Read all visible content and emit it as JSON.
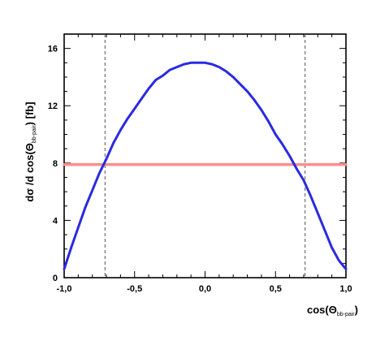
{
  "chart_data": {
    "type": "line",
    "title": "",
    "xlabel": {
      "prefix": "cos(Θ",
      "sub": "bb-pair",
      "suffix": ")"
    },
    "ylabel": {
      "prefix": "dσ /d cos(Θ",
      "sub": "bb-pair",
      "suffix": ") [fb]"
    },
    "xlim": [
      -1.0,
      1.0
    ],
    "ylim": [
      0,
      17
    ],
    "x_ticks": [
      {
        "value": -1.0,
        "label": "-1,0"
      },
      {
        "value": -0.5,
        "label": "-0,5"
      },
      {
        "value": 0.0,
        "label": "0,0"
      },
      {
        "value": 0.5,
        "label": "0,5"
      },
      {
        "value": 1.0,
        "label": "1,0"
      }
    ],
    "y_ticks": [
      {
        "value": 0,
        "label": "0"
      },
      {
        "value": 4,
        "label": "4"
      },
      {
        "value": 8,
        "label": "8"
      },
      {
        "value": 12,
        "label": "12"
      },
      {
        "value": 16,
        "label": "16"
      }
    ],
    "series": [
      {
        "color": "#2a2ae0",
        "x": [
          -1.0,
          -0.95,
          -0.9,
          -0.85,
          -0.8,
          -0.75,
          -0.7,
          -0.65,
          -0.6,
          -0.55,
          -0.5,
          -0.45,
          -0.4,
          -0.35,
          -0.3,
          -0.25,
          -0.2,
          -0.15,
          -0.1,
          -0.05,
          0.0,
          0.05,
          0.1,
          0.15,
          0.2,
          0.25,
          0.3,
          0.35,
          0.4,
          0.45,
          0.5,
          0.55,
          0.6,
          0.65,
          0.7,
          0.75,
          0.8,
          0.85,
          0.9,
          0.95,
          1.0
        ],
        "y": [
          0.6,
          2.1,
          3.5,
          4.9,
          6.1,
          7.3,
          8.3,
          9.4,
          10.3,
          11.1,
          11.8,
          12.5,
          13.2,
          13.8,
          14.1,
          14.5,
          14.7,
          14.9,
          15.0,
          15.0,
          15.0,
          14.9,
          14.7,
          14.4,
          14.0,
          13.5,
          13.0,
          12.4,
          11.7,
          10.9,
          10.0,
          9.3,
          8.5,
          7.6,
          6.8,
          5.7,
          4.5,
          3.3,
          2.1,
          1.2,
          0.6
        ]
      },
      {
        "color": "#ff8c8c",
        "x": [
          -1.0,
          1.0
        ],
        "y": [
          7.9,
          7.9
        ]
      }
    ],
    "reference_lines": [
      {
        "orientation": "vertical",
        "x": -0.71,
        "style": "dashed"
      },
      {
        "orientation": "vertical",
        "x": 0.71,
        "style": "dashed"
      }
    ],
    "grid": false,
    "legend": "none"
  }
}
